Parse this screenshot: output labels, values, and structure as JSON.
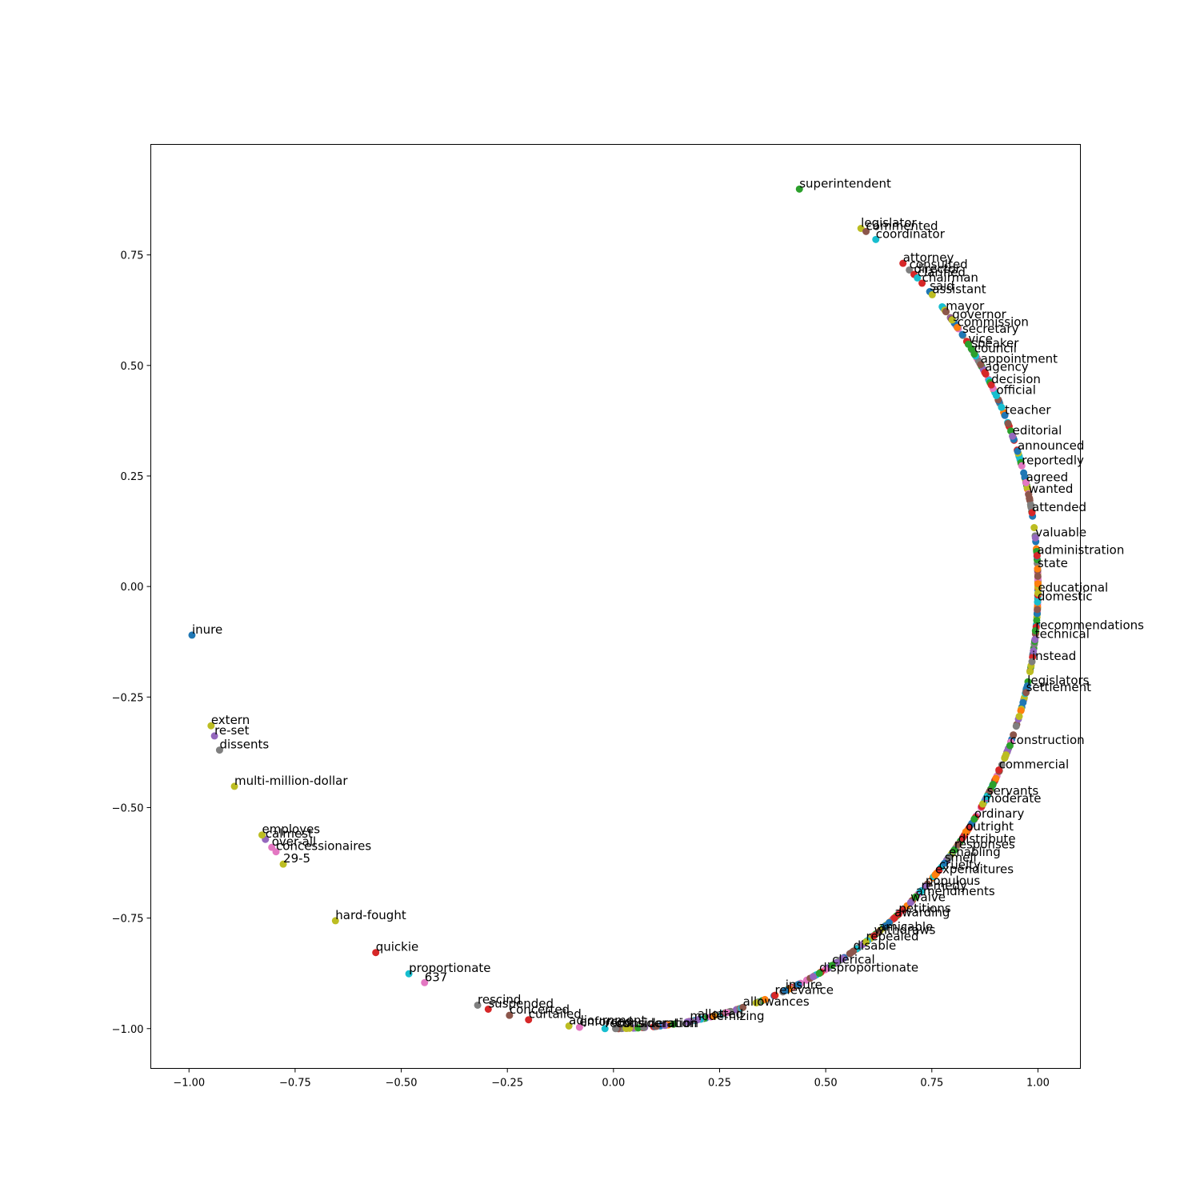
{
  "chart_data": {
    "type": "scatter",
    "title": "",
    "xlabel": "",
    "ylabel": "",
    "xlim": [
      -1.09,
      1.1
    ],
    "ylim": [
      -1.09,
      1.0
    ],
    "grid": false,
    "x_ticks": [
      -1.0,
      -0.75,
      -0.5,
      -0.25,
      0.0,
      0.25,
      0.5,
      0.75,
      1.0
    ],
    "x_tick_labels": [
      "−1.00",
      "−0.75",
      "−0.50",
      "−0.25",
      "0.00",
      "0.25",
      "0.50",
      "0.75",
      "1.00"
    ],
    "y_ticks": [
      0.75,
      0.5,
      0.25,
      0.0,
      -0.25,
      -0.5,
      -0.75,
      -1.0
    ],
    "y_tick_labels": [
      "0.75",
      "0.50",
      "0.25",
      "0.00",
      "−0.25",
      "−0.50",
      "−0.75",
      "−1.00"
    ],
    "palette": [
      "#1f77b4",
      "#ff7f0e",
      "#2ca02c",
      "#d62728",
      "#9467bd",
      "#8c564b",
      "#e377c2",
      "#7f7f7f",
      "#bcbd22",
      "#17becf"
    ],
    "points": [
      {
        "label": "superintendent",
        "x": 0.438,
        "y": 0.899,
        "color": "#2ca02c"
      },
      {
        "label": "legislator",
        "x": 0.583,
        "y": 0.81,
        "color": "#bcbd22"
      },
      {
        "label": "commented",
        "x": 0.595,
        "y": 0.803,
        "color": "#8c564b"
      },
      {
        "label": "coordinator",
        "x": 0.618,
        "y": 0.785,
        "color": "#17becf"
      },
      {
        "label": "attorney",
        "x": 0.682,
        "y": 0.731,
        "color": "#d62728"
      },
      {
        "label": "consulted",
        "x": 0.697,
        "y": 0.716,
        "color": "#7f7f7f"
      },
      {
        "label": "director",
        "x": 0.708,
        "y": 0.706,
        "color": "#d62728"
      },
      {
        "label": "clarified",
        "x": 0.716,
        "y": 0.698,
        "color": "#17becf"
      },
      {
        "label": "chairman",
        "x": 0.727,
        "y": 0.686,
        "color": "#d62728"
      },
      {
        "label": "said",
        "x": 0.745,
        "y": 0.667,
        "color": "#1f77b4"
      },
      {
        "label": "assistant",
        "x": 0.751,
        "y": 0.66,
        "color": "#bcbd22"
      },
      {
        "label": "mayor",
        "x": 0.783,
        "y": 0.622,
        "color": "#8c564b"
      },
      {
        "label": "governor",
        "x": 0.798,
        "y": 0.603,
        "color": "#bcbd22"
      },
      {
        "label": "commission",
        "x": 0.81,
        "y": 0.586,
        "color": "#ff7f0e"
      },
      {
        "label": "secretary",
        "x": 0.822,
        "y": 0.57,
        "color": "#1f77b4"
      },
      {
        "label": "speaker",
        "x": 0.843,
        "y": 0.538,
        "color": "#2ca02c"
      },
      {
        "label": "vice",
        "x": 0.836,
        "y": 0.548,
        "color": "#2ca02c"
      },
      {
        "label": "council",
        "x": 0.85,
        "y": 0.526,
        "color": "#2ca02c"
      },
      {
        "label": "appointment",
        "x": 0.865,
        "y": 0.502,
        "color": "#8c564b"
      },
      {
        "label": "agency",
        "x": 0.875,
        "y": 0.484,
        "color": "#d62728"
      },
      {
        "label": "decision",
        "x": 0.89,
        "y": 0.456,
        "color": "#d62728"
      },
      {
        "label": "official",
        "x": 0.902,
        "y": 0.432,
        "color": "#17becf"
      },
      {
        "label": "teacher",
        "x": 0.922,
        "y": 0.387,
        "color": "#1f77b4"
      },
      {
        "label": "editorial",
        "x": 0.94,
        "y": 0.34,
        "color": "#9467bd"
      },
      {
        "label": "announced",
        "x": 0.952,
        "y": 0.306,
        "color": "#1f77b4"
      },
      {
        "label": "reportedly",
        "x": 0.962,
        "y": 0.273,
        "color": "#e377c2"
      },
      {
        "label": "agreed",
        "x": 0.972,
        "y": 0.235,
        "color": "#e377c2"
      },
      {
        "label": "wanted",
        "x": 0.978,
        "y": 0.208,
        "color": "#8c564b"
      },
      {
        "label": "attended",
        "x": 0.986,
        "y": 0.167,
        "color": "#d62728"
      },
      {
        "label": "valuable",
        "x": 0.994,
        "y": 0.11,
        "color": "#9467bd"
      },
      {
        "label": "administration",
        "x": 0.998,
        "y": 0.07,
        "color": "#d62728"
      },
      {
        "label": "state",
        "x": 0.999,
        "y": 0.04,
        "color": "#ff7f0e"
      },
      {
        "label": "educational",
        "x": 1.0,
        "y": -0.015,
        "color": "#bcbd22"
      },
      {
        "label": "domestic",
        "x": 0.999,
        "y": -0.035,
        "color": "#17becf"
      },
      {
        "label": "recommendations",
        "x": 0.994,
        "y": -0.1,
        "color": "#2ca02c"
      },
      {
        "label": "technical",
        "x": 0.993,
        "y": -0.12,
        "color": "#9467bd"
      },
      {
        "label": "instead",
        "x": 0.986,
        "y": -0.17,
        "color": "#7f7f7f"
      },
      {
        "label": "legislators",
        "x": 0.975,
        "y": -0.225,
        "color": "#1f77b4"
      },
      {
        "label": "settlement",
        "x": 0.972,
        "y": -0.24,
        "color": "#8c564b"
      },
      {
        "label": "construction",
        "x": 0.934,
        "y": -0.36,
        "color": "#2ca02c"
      },
      {
        "label": "commercial",
        "x": 0.908,
        "y": -0.415,
        "color": "#d62728"
      },
      {
        "label": "servants",
        "x": 0.88,
        "y": -0.475,
        "color": "#17becf"
      },
      {
        "label": "moderate",
        "x": 0.87,
        "y": -0.492,
        "color": "#bcbd22"
      },
      {
        "label": "ordinary",
        "x": 0.85,
        "y": -0.526,
        "color": "#2ca02c"
      },
      {
        "label": "outright",
        "x": 0.83,
        "y": -0.555,
        "color": "#ff7f0e"
      },
      {
        "label": "distribute",
        "x": 0.812,
        "y": -0.583,
        "color": "#8c564b"
      },
      {
        "label": "responses",
        "x": 0.803,
        "y": -0.596,
        "color": "#2ca02c"
      },
      {
        "label": "enabling",
        "x": 0.79,
        "y": -0.613,
        "color": "#7f7f7f"
      },
      {
        "label": "smell",
        "x": 0.78,
        "y": -0.626,
        "color": "#1f77b4"
      },
      {
        "label": "cruelty",
        "x": 0.767,
        "y": -0.642,
        "color": "#d62728"
      },
      {
        "label": "expenditures",
        "x": 0.758,
        "y": -0.652,
        "color": "#ff7f0e"
      },
      {
        "label": "populous",
        "x": 0.735,
        "y": -0.678,
        "color": "#9467bd"
      },
      {
        "label": "remedy",
        "x": 0.725,
        "y": -0.689,
        "color": "#17becf"
      },
      {
        "label": "amendments",
        "x": 0.712,
        "y": -0.702,
        "color": "#2ca02c"
      },
      {
        "label": "waive",
        "x": 0.7,
        "y": -0.715,
        "color": "#9467bd"
      },
      {
        "label": "petitions",
        "x": 0.672,
        "y": -0.741,
        "color": "#d62728"
      },
      {
        "label": "awarding",
        "x": 0.662,
        "y": -0.75,
        "color": "#d62728"
      },
      {
        "label": "amicable",
        "x": 0.624,
        "y": -0.782,
        "color": "#8c564b"
      },
      {
        "label": "withdraws",
        "x": 0.614,
        "y": -0.79,
        "color": "#d62728"
      },
      {
        "label": "repealed",
        "x": 0.595,
        "y": -0.804,
        "color": "#bcbd22"
      },
      {
        "label": "disable",
        "x": 0.565,
        "y": -0.825,
        "color": "#8c564b"
      },
      {
        "label": "clerical",
        "x": 0.515,
        "y": -0.857,
        "color": "#2ca02c"
      },
      {
        "label": "disproportionate",
        "x": 0.485,
        "y": -0.875,
        "color": "#2ca02c"
      },
      {
        "label": "insure",
        "x": 0.405,
        "y": -0.914,
        "color": "#1f77b4"
      },
      {
        "label": "relevance",
        "x": 0.38,
        "y": -0.925,
        "color": "#d62728"
      },
      {
        "label": "allowances",
        "x": 0.305,
        "y": -0.952,
        "color": "#8c564b"
      },
      {
        "label": "allotted",
        "x": 0.198,
        "y": -0.98,
        "color": "#9467bd"
      },
      {
        "label": "modernizing",
        "x": 0.18,
        "y": -0.984,
        "color": "#9467bd"
      },
      {
        "label": "consideration",
        "x": 0.005,
        "y": -1.0,
        "color": "#7f7f7f"
      },
      {
        "label": "reconsideration",
        "x": -0.02,
        "y": -1.0,
        "color": "#17becf"
      },
      {
        "label": "enforced",
        "x": -0.08,
        "y": -0.997,
        "color": "#e377c2"
      },
      {
        "label": "adjournment",
        "x": -0.105,
        "y": -0.994,
        "color": "#bcbd22"
      },
      {
        "label": "curtailed",
        "x": -0.2,
        "y": -0.98,
        "color": "#d62728"
      },
      {
        "label": "concerted",
        "x": -0.245,
        "y": -0.97,
        "color": "#8c564b"
      },
      {
        "label": "suspended",
        "x": -0.295,
        "y": -0.956,
        "color": "#d62728"
      },
      {
        "label": "rescind",
        "x": -0.32,
        "y": -0.947,
        "color": "#7f7f7f"
      },
      {
        "label": "637",
        "x": -0.445,
        "y": -0.896,
        "color": "#e377c2"
      },
      {
        "label": "proportionate",
        "x": -0.482,
        "y": -0.876,
        "color": "#17becf"
      },
      {
        "label": "quickie",
        "x": -0.56,
        "y": -0.828,
        "color": "#d62728"
      },
      {
        "label": "hard-fought",
        "x": -0.655,
        "y": -0.756,
        "color": "#bcbd22"
      },
      {
        "label": "29-5",
        "x": -0.778,
        "y": -0.628,
        "color": "#bcbd22"
      },
      {
        "label": "concessionaires",
        "x": -0.795,
        "y": -0.6,
        "color": "#e377c2"
      },
      {
        "label": "over-all",
        "x": -0.805,
        "y": -0.59,
        "color": "#e377c2"
      },
      {
        "label": "calmest",
        "x": -0.82,
        "y": -0.572,
        "color": "#9467bd"
      },
      {
        "label": "employes",
        "x": -0.828,
        "y": -0.562,
        "color": "#bcbd22"
      },
      {
        "label": "multi-million-dollar",
        "x": -0.893,
        "y": -0.452,
        "color": "#bcbd22"
      },
      {
        "label": "dissents",
        "x": -0.928,
        "y": -0.37,
        "color": "#7f7f7f"
      },
      {
        "label": "re-set",
        "x": -0.94,
        "y": -0.338,
        "color": "#9467bd"
      },
      {
        "label": "extern",
        "x": -0.948,
        "y": -0.315,
        "color": "#bcbd22"
      },
      {
        "label": "inure",
        "x": -0.993,
        "y": -0.11,
        "color": "#1f77b4"
      }
    ]
  }
}
